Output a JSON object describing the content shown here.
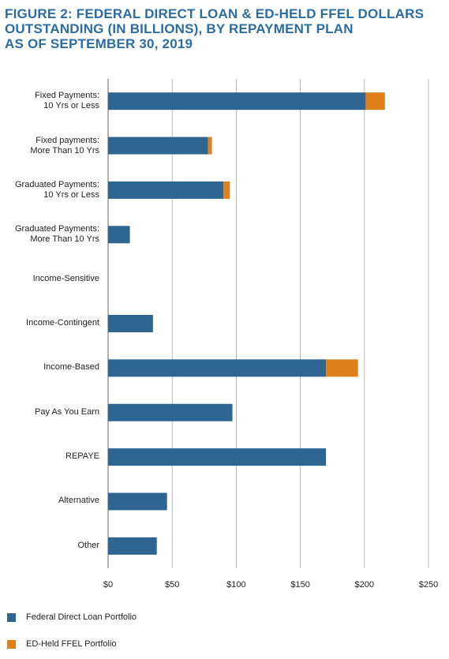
{
  "chart_data": {
    "type": "stacked-hbar",
    "title": "FIGURE 2: FEDERAL DIRECT LOAN & ED-HELD FFEL DOLLARS\nOUTSTANDING (IN BILLIONS), BY REPAYMENT PLAN\nAS OF SEPTEMBER 30, 2019",
    "categories": [
      "Fixed Payments:\n10 Yrs or Less",
      "Fixed payments:\nMore Than 10 Yrs",
      "Graduated Payments:\n10 Yrs or Less",
      "Graduated Payments:\nMore Than 10 Yrs",
      "Income-Sensitive",
      "Income-Contingent",
      "Income-Based",
      "Pay As You Earn",
      "REPAYE",
      "Alternative",
      "Other"
    ],
    "series": [
      {
        "name": "Federal Direct Loan Portfolio",
        "color": "#2e6591",
        "values": [
          201,
          78,
          90,
          17,
          0,
          35,
          170,
          97,
          170,
          46,
          38
        ]
      },
      {
        "name": "ED-Held FFEL Portfolio",
        "color": "#e0801a",
        "values": [
          15,
          3,
          5,
          0,
          0,
          0,
          25,
          0,
          0,
          0,
          0
        ]
      }
    ],
    "xlim": [
      0,
      250
    ],
    "xticks": [
      {
        "value": 0,
        "label": "$0"
      },
      {
        "value": 50,
        "label": "$50"
      },
      {
        "value": 100,
        "label": "$100"
      },
      {
        "value": 150,
        "label": "$150"
      },
      {
        "value": 200,
        "label": "$200"
      },
      {
        "value": 250,
        "label": "$250"
      }
    ],
    "grid": true
  }
}
